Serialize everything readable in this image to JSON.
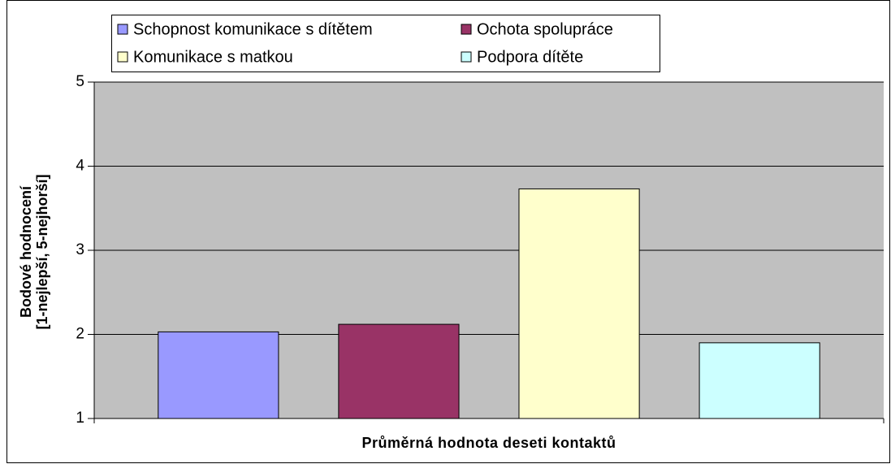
{
  "chart_data": {
    "type": "bar",
    "categories": [
      "Průměrná hodnota deseti kontaktů"
    ],
    "ylabel": [
      "Bodové hodnocení",
      "[1-nejlepší, 5-nejhorší]"
    ],
    "series": [
      {
        "name": "Schopnost komunikace s dítětem",
        "color": "#9999ff",
        "values": [
          2.03
        ]
      },
      {
        "name": "Ochota spolupráce",
        "color": "#993366",
        "values": [
          2.12
        ]
      },
      {
        "name": "Komunikace s matkou",
        "color": "#ffffcc",
        "values": [
          3.73
        ]
      },
      {
        "name": "Podpora dítěte",
        "color": "#ccffff",
        "values": [
          1.9
        ]
      }
    ],
    "ylim": [
      1,
      5
    ],
    "yticks": [
      1,
      2,
      3,
      4,
      5
    ],
    "grid": true,
    "legend": "top"
  }
}
